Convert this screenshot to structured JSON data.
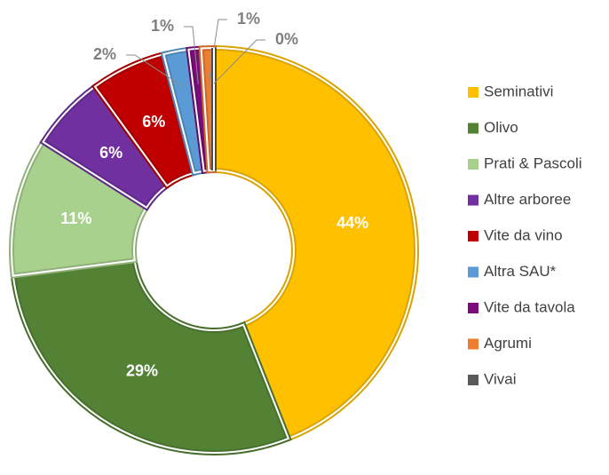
{
  "chart_data": {
    "type": "donut",
    "categories": [
      "Seminativi",
      "Olivo",
      "Prati & Pascoli",
      "Altre arboree",
      "Vite da vino",
      "Altra SAU*",
      "Vite da tavola",
      "Agrumi",
      "Vivai"
    ],
    "values": [
      44,
      29,
      11,
      6,
      6,
      2,
      1,
      1,
      0
    ],
    "value_labels": [
      "44%",
      "29%",
      "11%",
      "6%",
      "6%",
      "2%",
      "1%",
      "1%",
      "0%"
    ],
    "colors": [
      "#ffc000",
      "#548235",
      "#a9d18e",
      "#7030a0",
      "#c00000",
      "#5b9bd5",
      "#7b0c7b",
      "#ed7d31",
      "#595959"
    ],
    "legend": "right"
  }
}
